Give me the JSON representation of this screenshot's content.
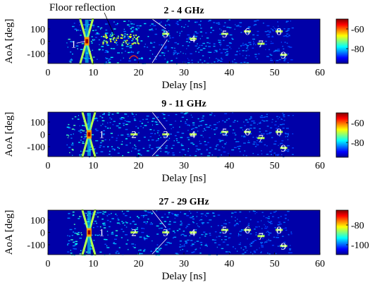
{
  "figure": {
    "annotation": "Floor reflection"
  },
  "chart_data": [
    {
      "type": "heatmap",
      "title": "2 - 4 GHz",
      "xlabel": "Delay [ns]",
      "ylabel": "AoA [deg]",
      "xlim": [
        0,
        60
      ],
      "ylim": [
        -180,
        180
      ],
      "x_ticks": [
        "0",
        "10",
        "20",
        "30",
        "40",
        "50",
        "60"
      ],
      "y_ticks": [
        "100",
        "0",
        "-100"
      ],
      "colorbar_ticks": [
        "-60",
        "-80"
      ],
      "colorbar_range": [
        -95,
        -50
      ],
      "colormap": "jet",
      "clusters": [
        {
          "label": "1",
          "delay": 8.5,
          "aoa": 0
        },
        {
          "label": "3",
          "delay": 26,
          "aoa": 60
        },
        {
          "label": "4",
          "delay": 32,
          "aoa": 20
        },
        {
          "label": "5",
          "delay": 39,
          "aoa": 60
        },
        {
          "label": "6",
          "delay": 44,
          "aoa": 80
        },
        {
          "label": "7",
          "delay": 47,
          "aoa": -20
        },
        {
          "label": "8",
          "delay": 51,
          "aoa": 80
        },
        {
          "label": "9",
          "delay": 52,
          "aoa": -110
        }
      ]
    },
    {
      "type": "heatmap",
      "title": "9 - 11 GHz",
      "xlabel": "Delay [ns]",
      "ylabel": "AoA [deg]",
      "xlim": [
        0,
        60
      ],
      "ylim": [
        -180,
        180
      ],
      "x_ticks": [
        "0",
        "10",
        "20",
        "30",
        "40",
        "50",
        "60"
      ],
      "y_ticks": [
        "100",
        "0",
        "-100"
      ],
      "colorbar_ticks": [
        "-60",
        "-80"
      ],
      "colorbar_range": [
        -95,
        -50
      ],
      "colormap": "jet",
      "clusters": [
        {
          "label": "1",
          "delay": 10.5,
          "aoa": 0
        },
        {
          "label": "2",
          "delay": 19,
          "aoa": 0
        },
        {
          "label": "3",
          "delay": 26,
          "aoa": 0
        },
        {
          "label": "4",
          "delay": 32,
          "aoa": 0
        },
        {
          "label": "5",
          "delay": 39,
          "aoa": 20
        },
        {
          "label": "6",
          "delay": 44,
          "aoa": 20
        },
        {
          "label": "7",
          "delay": 47,
          "aoa": -30
        },
        {
          "label": "8",
          "delay": 51,
          "aoa": 20
        },
        {
          "label": "9",
          "delay": 52,
          "aoa": -110
        }
      ]
    },
    {
      "type": "heatmap",
      "title": "27 - 29 GHz",
      "xlabel": "Delay [ns]",
      "ylabel": "AoA [deg]",
      "xlim": [
        0,
        60
      ],
      "ylim": [
        -180,
        180
      ],
      "x_ticks": [
        "0",
        "10",
        "20",
        "30",
        "40",
        "50",
        "60"
      ],
      "y_ticks": [
        "100",
        "0",
        "-100"
      ],
      "colorbar_ticks": [
        "-80",
        "-100"
      ],
      "colorbar_range": [
        -110,
        -65
      ],
      "colormap": "jet",
      "clusters": [
        {
          "label": "1",
          "delay": 10.5,
          "aoa": 0
        },
        {
          "label": "2",
          "delay": 19,
          "aoa": 0
        },
        {
          "label": "3",
          "delay": 26,
          "aoa": 0
        },
        {
          "label": "4",
          "delay": 32,
          "aoa": 0
        },
        {
          "label": "5",
          "delay": 39,
          "aoa": 20
        },
        {
          "label": "6",
          "delay": 44,
          "aoa": 20
        },
        {
          "label": "7",
          "delay": 47,
          "aoa": -30
        },
        {
          "label": "8",
          "delay": 51,
          "aoa": 20
        },
        {
          "label": "9",
          "delay": 52,
          "aoa": -110
        }
      ]
    }
  ]
}
